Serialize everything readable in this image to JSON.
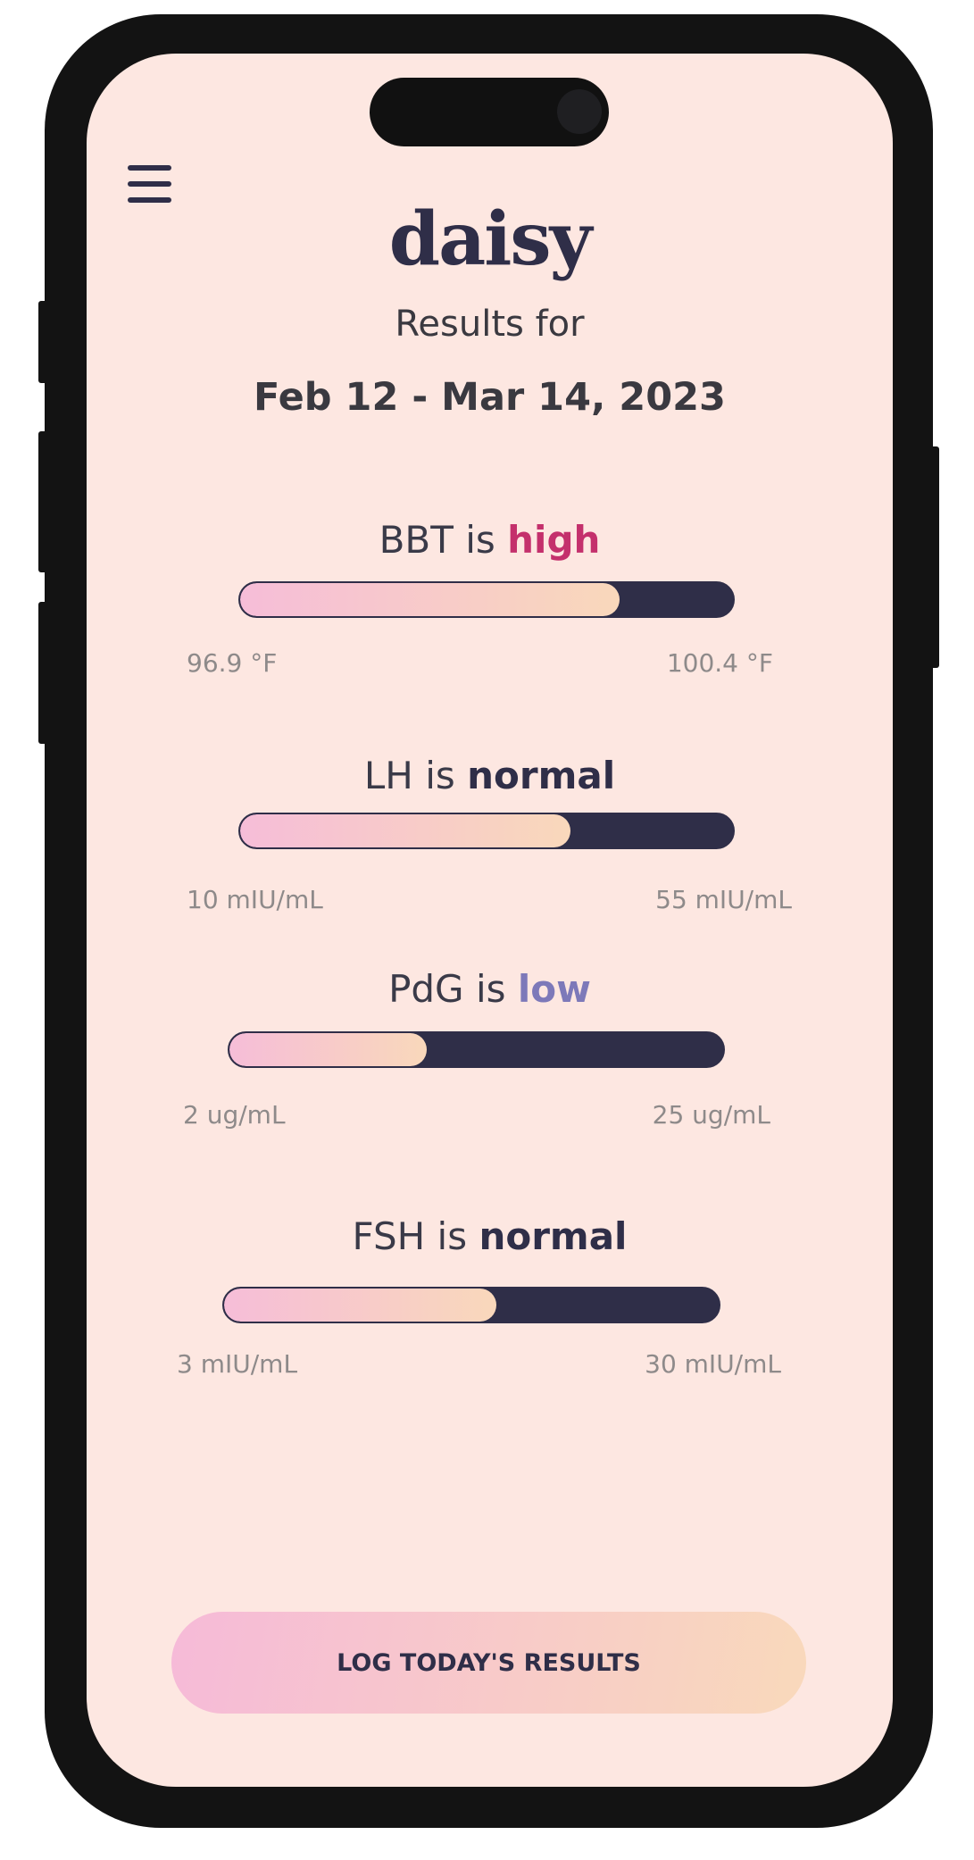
{
  "app": {
    "logo": "daisy",
    "subtitle": "Results for",
    "date_range": "Feb 12 - Mar 14, 2023",
    "metrics": [
      {
        "name": "BBT is",
        "status": "high",
        "status_color": "#c4306c",
        "min": "96.9 °F",
        "max": "100.4 °F",
        "level": 77
      },
      {
        "name": "LH is",
        "status": "normal",
        "status_color": "#2f2e48",
        "min": "10 mIU/mL",
        "max": "55 mIU/mL",
        "level": 67
      },
      {
        "name": "PdG is",
        "status": "low",
        "status_color": "#7d79b9",
        "min": "2 ug/mL",
        "max": "25 ug/mL",
        "level": 40
      },
      {
        "name": "FSH is",
        "status": "normal",
        "status_color": "#2f2e48",
        "min": "3 mIU/mL",
        "max": "30 mIU/mL",
        "level": 55
      }
    ],
    "button": "LOG TODAY'S RESULTS"
  }
}
